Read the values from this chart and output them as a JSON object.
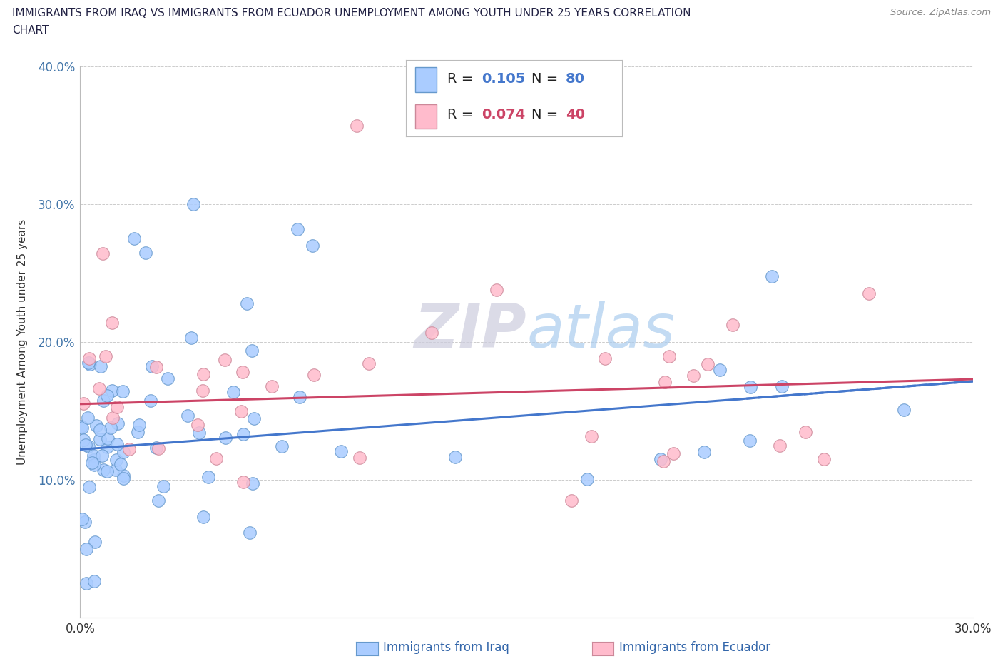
{
  "title_line1": "IMMIGRANTS FROM IRAQ VS IMMIGRANTS FROM ECUADOR UNEMPLOYMENT AMONG YOUTH UNDER 25 YEARS CORRELATION",
  "title_line2": "CHART",
  "source": "Source: ZipAtlas.com",
  "ylabel": "Unemployment Among Youth under 25 years",
  "legend_label_iraq": "Immigrants from Iraq",
  "legend_label_ecuador": "Immigrants from Ecuador",
  "xlim": [
    0.0,
    0.3
  ],
  "ylim": [
    0.0,
    0.4
  ],
  "xtick_pos": [
    0.0,
    0.05,
    0.1,
    0.15,
    0.2,
    0.25,
    0.3
  ],
  "xtick_labels": [
    "0.0%",
    "",
    "",
    "",
    "",
    "",
    "30.0%"
  ],
  "ytick_pos": [
    0.0,
    0.1,
    0.2,
    0.3,
    0.4
  ],
  "ytick_labels": [
    "",
    "10.0%",
    "20.0%",
    "30.0%",
    "40.0%"
  ],
  "R_iraq": 0.105,
  "N_iraq": 80,
  "R_ecuador": 0.074,
  "N_ecuador": 40,
  "color_iraq_fill": "#aaccff",
  "color_iraq_edge": "#6699cc",
  "color_ecuador_fill": "#ffbbcc",
  "color_ecuador_edge": "#cc8899",
  "color_iraq_line": "#4477cc",
  "color_ecuador_line": "#cc4466",
  "watermark_color": "#ddeeff",
  "grid_color": "#cccccc",
  "title_color": "#222244",
  "source_color": "#888888",
  "axis_label_color": "#333333",
  "ytick_color": "#4477aa",
  "xtick_color": "#333333"
}
